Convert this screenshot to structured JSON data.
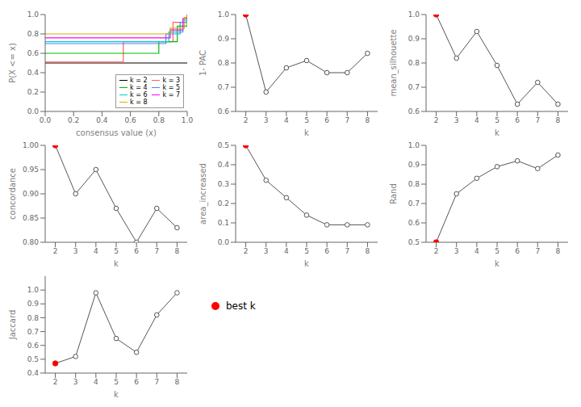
{
  "chart_data": [
    {
      "type": "step",
      "xlabel": "consensus value (x)",
      "ylabel": "P(X <= x)",
      "xlim": [
        0,
        1
      ],
      "ylim": [
        0,
        1
      ],
      "xticks": [
        {
          "value": 0,
          "label": "0.0"
        },
        0.2,
        0.4,
        0.6,
        0.8,
        {
          "value": 1,
          "label": "1.0"
        }
      ],
      "yticks": [
        {
          "value": 0,
          "label": "0.0"
        },
        0.2,
        0.4,
        0.6,
        0.8,
        {
          "value": 1,
          "label": "1.0"
        }
      ],
      "legend": "lower right",
      "series": [
        {
          "name": "k = 2",
          "color": "#000000",
          "x": [
            0.0,
            1.0
          ],
          "values": [
            0.5,
            0.5
          ]
        },
        {
          "name": "k = 3",
          "color": "#FF6060",
          "x": [
            0.0,
            0.14,
            0.55,
            0.9,
            1.0
          ],
          "values": [
            0.51,
            0.51,
            0.72,
            0.92,
            1.0
          ]
        },
        {
          "name": "k = 4",
          "color": "#00BB00",
          "x": [
            0.0,
            0.07,
            0.8,
            0.93,
            1.0
          ],
          "values": [
            0.6,
            0.6,
            0.72,
            0.88,
            1.0
          ]
        },
        {
          "name": "k = 5",
          "color": "#4488FF",
          "x": [
            0.0,
            0.05,
            0.85,
            0.95,
            1.0
          ],
          "values": [
            0.7,
            0.7,
            0.8,
            0.92,
            1.0
          ]
        },
        {
          "name": "k = 6",
          "color": "#00CCCC",
          "x": [
            0.0,
            0.04,
            0.87,
            0.97,
            1.0
          ],
          "values": [
            0.72,
            0.72,
            0.82,
            0.94,
            1.0
          ]
        },
        {
          "name": "k = 7",
          "color": "#FF00FF",
          "x": [
            0.0,
            0.02,
            0.88,
            0.97,
            1.0
          ],
          "values": [
            0.76,
            0.76,
            0.84,
            0.96,
            1.0
          ]
        },
        {
          "name": "k = 8",
          "color": "#DDAA00",
          "x": [
            0.0,
            0.01,
            0.88,
            0.98,
            1.0
          ],
          "values": [
            0.8,
            0.8,
            0.86,
            0.97,
            1.0
          ]
        }
      ]
    },
    {
      "type": "line",
      "xlabel": "k",
      "ylabel": "1- PAC",
      "x": [
        2,
        3,
        4,
        5,
        6,
        7,
        8
      ],
      "values": [
        1.0,
        0.68,
        0.78,
        0.81,
        0.76,
        0.76,
        0.84
      ],
      "color": "#555555",
      "colors": [
        "#FF0000",
        "#555555",
        "#555555",
        "#555555",
        "#555555",
        "#555555",
        "#555555"
      ],
      "marker": "circle",
      "xlim": [
        1.5,
        8.5
      ],
      "xticks": [
        2,
        3,
        4,
        5,
        6,
        7,
        8
      ],
      "ylim": [
        0.6,
        1.0
      ],
      "yticks": [
        0.6,
        0.7,
        0.8,
        0.9,
        {
          "value": 1.0,
          "label": "1.0"
        }
      ]
    },
    {
      "type": "line",
      "xlabel": "k",
      "ylabel": "mean_silhouette",
      "x": [
        2,
        3,
        4,
        5,
        6,
        7,
        8
      ],
      "values": [
        1.0,
        0.82,
        0.93,
        0.79,
        0.63,
        0.72,
        0.63
      ],
      "color": "#555555",
      "colors": [
        "#FF0000",
        "#555555",
        "#555555",
        "#555555",
        "#555555",
        "#555555",
        "#555555"
      ],
      "marker": "circle",
      "xlim": [
        1.5,
        8.5
      ],
      "xticks": [
        2,
        3,
        4,
        5,
        6,
        7,
        8
      ],
      "ylim": [
        0.6,
        1.0
      ],
      "yticks": [
        0.6,
        0.7,
        0.8,
        0.9,
        {
          "value": 1.0,
          "label": "1.0"
        }
      ]
    },
    {
      "type": "line",
      "xlabel": "k",
      "ylabel": "concordance",
      "x": [
        2,
        3,
        4,
        5,
        6,
        7,
        8
      ],
      "values": [
        1.0,
        0.9,
        0.95,
        0.87,
        0.8,
        0.87,
        0.83
      ],
      "color": "#555555",
      "colors": [
        "#FF0000",
        "#555555",
        "#555555",
        "#555555",
        "#555555",
        "#555555",
        "#555555"
      ],
      "marker": "circle",
      "xlim": [
        1.5,
        8.5
      ],
      "xticks": [
        2,
        3,
        4,
        5,
        6,
        7,
        8
      ],
      "ylim": [
        0.8,
        1.0
      ],
      "yticks": [
        {
          "value": 0.8,
          "label": "0.80"
        },
        0.85,
        {
          "value": 0.9,
          "label": "0.90"
        },
        0.95,
        {
          "value": 1.0,
          "label": "1.00"
        }
      ]
    },
    {
      "type": "line",
      "xlabel": "k",
      "ylabel": "area_increased",
      "x": [
        2,
        3,
        4,
        5,
        6,
        7,
        8
      ],
      "values": [
        0.5,
        0.32,
        0.23,
        0.14,
        0.09,
        0.09,
        0.09
      ],
      "color": "#555555",
      "colors": [
        "#FF0000",
        "#555555",
        "#555555",
        "#555555",
        "#555555",
        "#555555",
        "#555555"
      ],
      "marker": "circle",
      "xlim": [
        1.5,
        8.5
      ],
      "xticks": [
        2,
        3,
        4,
        5,
        6,
        7,
        8
      ],
      "ylim": [
        0.0,
        0.5
      ],
      "yticks": [
        {
          "value": 0.0,
          "label": "0.0"
        },
        0.1,
        0.2,
        0.3,
        0.4,
        0.5
      ]
    },
    {
      "type": "line",
      "xlabel": "k",
      "ylabel": "Rand",
      "x": [
        2,
        3,
        4,
        5,
        6,
        7,
        8
      ],
      "values": [
        0.5,
        0.75,
        0.83,
        0.89,
        0.92,
        0.88,
        0.95
      ],
      "color": "#555555",
      "colors": [
        "#FF0000",
        "#555555",
        "#555555",
        "#555555",
        "#555555",
        "#555555",
        "#555555"
      ],
      "marker": "circle",
      "xlim": [
        1.5,
        8.5
      ],
      "xticks": [
        2,
        3,
        4,
        5,
        6,
        7,
        8
      ],
      "ylim": [
        0.5,
        1.0
      ],
      "yticks": [
        0.5,
        0.6,
        0.7,
        0.8,
        0.9,
        {
          "value": 1.0,
          "label": "1.0"
        }
      ]
    },
    {
      "type": "line",
      "xlabel": "k",
      "ylabel": "Jaccard",
      "x": [
        2,
        3,
        4,
        5,
        6,
        7,
        8
      ],
      "values": [
        0.47,
        0.52,
        0.98,
        0.65,
        0.55,
        0.82,
        0.98
      ],
      "color": "#555555",
      "colors": [
        "#FF0000",
        "#555555",
        "#555555",
        "#555555",
        "#555555",
        "#555555",
        "#555555"
      ],
      "marker": "circle",
      "xlim": [
        1.5,
        8.5
      ],
      "xticks": [
        2,
        3,
        4,
        5,
        6,
        7,
        8
      ],
      "ylim": [
        0.4,
        1.1
      ],
      "yticks": [
        0.4,
        0.5,
        0.6,
        0.7,
        0.8,
        0.9,
        {
          "value": 1.0,
          "label": "1.0"
        }
      ]
    },
    {
      "type": "legend",
      "series": [
        {
          "name": "best k",
          "color": "#FF0000",
          "marker": "circle"
        }
      ]
    }
  ]
}
